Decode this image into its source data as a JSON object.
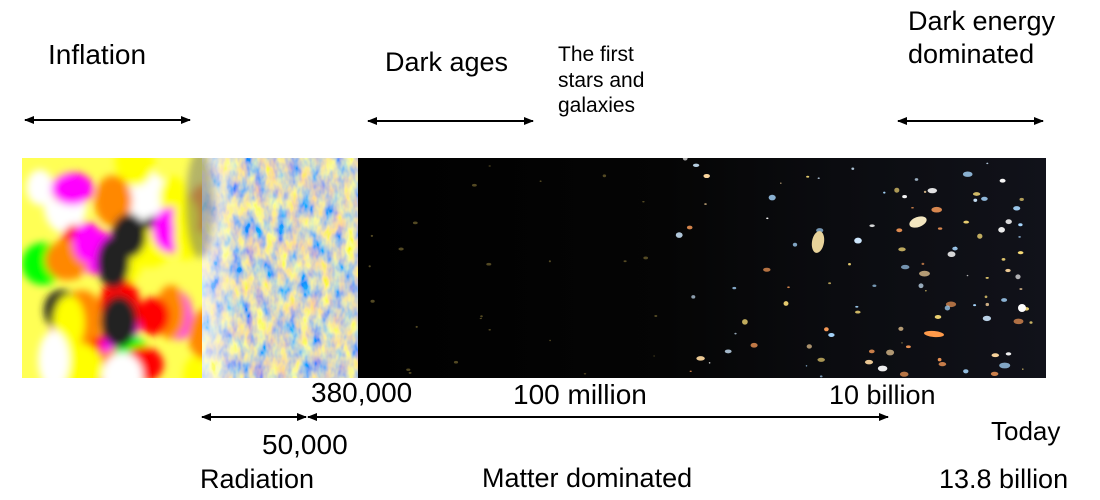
{
  "top_labels": {
    "inflation": "Inflation",
    "dark_ages": "Dark ages",
    "first_stars": [
      "The first",
      "stars and",
      "galaxies"
    ],
    "dark_energy": [
      "Dark energy",
      "dominated"
    ]
  },
  "bottom_labels": {
    "t_380000": "380,000",
    "t_100million": "100 million",
    "t_10billion": "10 billion",
    "t_50000": "50,000",
    "today": "Today",
    "radiation": "Radiation",
    "matter": "Matter dominated",
    "age": "13.8 billion"
  },
  "colors": {
    "inflation_spots": [
      "#ff00ff",
      "#00ff00",
      "#ffff00",
      "#ff0000",
      "#222222",
      "#ffffff",
      "#ff8800"
    ],
    "cmb_blue": "#2a6fd6",
    "cmb_orange": "#e08a3a",
    "space": "#000000"
  }
}
